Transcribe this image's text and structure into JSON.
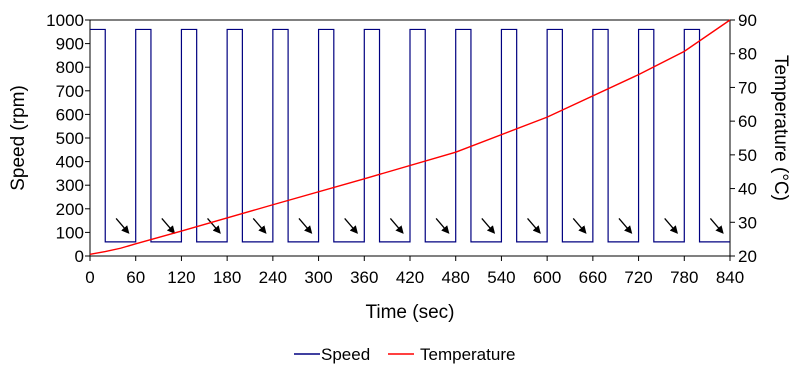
{
  "chart_data": {
    "type": "line",
    "xlabel": "Time (sec)",
    "ylabel": "Speed (rpm)",
    "y2label": "Temperature (°C)",
    "xlim": [
      0,
      840
    ],
    "ylim": [
      0,
      1000
    ],
    "y2lim": [
      20,
      90
    ],
    "x_ticks": [
      "0",
      "60",
      "120",
      "180",
      "240",
      "300",
      "360",
      "420",
      "480",
      "540",
      "600",
      "660",
      "720",
      "780",
      "840"
    ],
    "y_ticks": [
      "0",
      "100",
      "200",
      "300",
      "400",
      "500",
      "600",
      "700",
      "800",
      "900",
      "1000"
    ],
    "y2_ticks": [
      "20",
      "30",
      "40",
      "50",
      "60",
      "70",
      "80",
      "90"
    ],
    "grid": false,
    "legend_position": "bottom",
    "series": [
      {
        "name": "Speed",
        "axis": "left",
        "color": "#000080",
        "x": [
          0,
          0,
          20,
          20,
          60,
          60,
          80,
          80,
          120,
          120,
          140,
          140,
          180,
          180,
          200,
          200,
          240,
          240,
          260,
          260,
          300,
          300,
          320,
          320,
          360,
          360,
          380,
          380,
          420,
          420,
          440,
          440,
          480,
          480,
          500,
          500,
          540,
          540,
          560,
          560,
          600,
          600,
          620,
          620,
          660,
          660,
          680,
          680,
          720,
          720,
          740,
          740,
          780,
          780,
          800,
          800,
          840
        ],
        "y": [
          960,
          960,
          960,
          60,
          60,
          960,
          960,
          60,
          60,
          960,
          960,
          60,
          60,
          960,
          960,
          60,
          60,
          960,
          960,
          60,
          60,
          960,
          960,
          60,
          60,
          960,
          960,
          60,
          60,
          960,
          960,
          60,
          60,
          960,
          960,
          60,
          60,
          960,
          960,
          60,
          60,
          960,
          960,
          60,
          60,
          960,
          960,
          60,
          60,
          960,
          960,
          60,
          60,
          960,
          960,
          60,
          60
        ]
      },
      {
        "name": "Temperature",
        "axis": "right",
        "color": "#ff0000",
        "x": [
          0,
          20,
          40,
          60,
          120,
          240,
          360,
          480,
          600,
          720,
          780,
          840
        ],
        "y": [
          20.5,
          21.3,
          22.3,
          23.6,
          27.4,
          35.2,
          42.9,
          50.8,
          61.2,
          73.8,
          80.7,
          90
        ]
      }
    ],
    "arrows_x": [
      50,
      110,
      170,
      230,
      290,
      350,
      410,
      470,
      530,
      590,
      650,
      710,
      770,
      830
    ]
  }
}
